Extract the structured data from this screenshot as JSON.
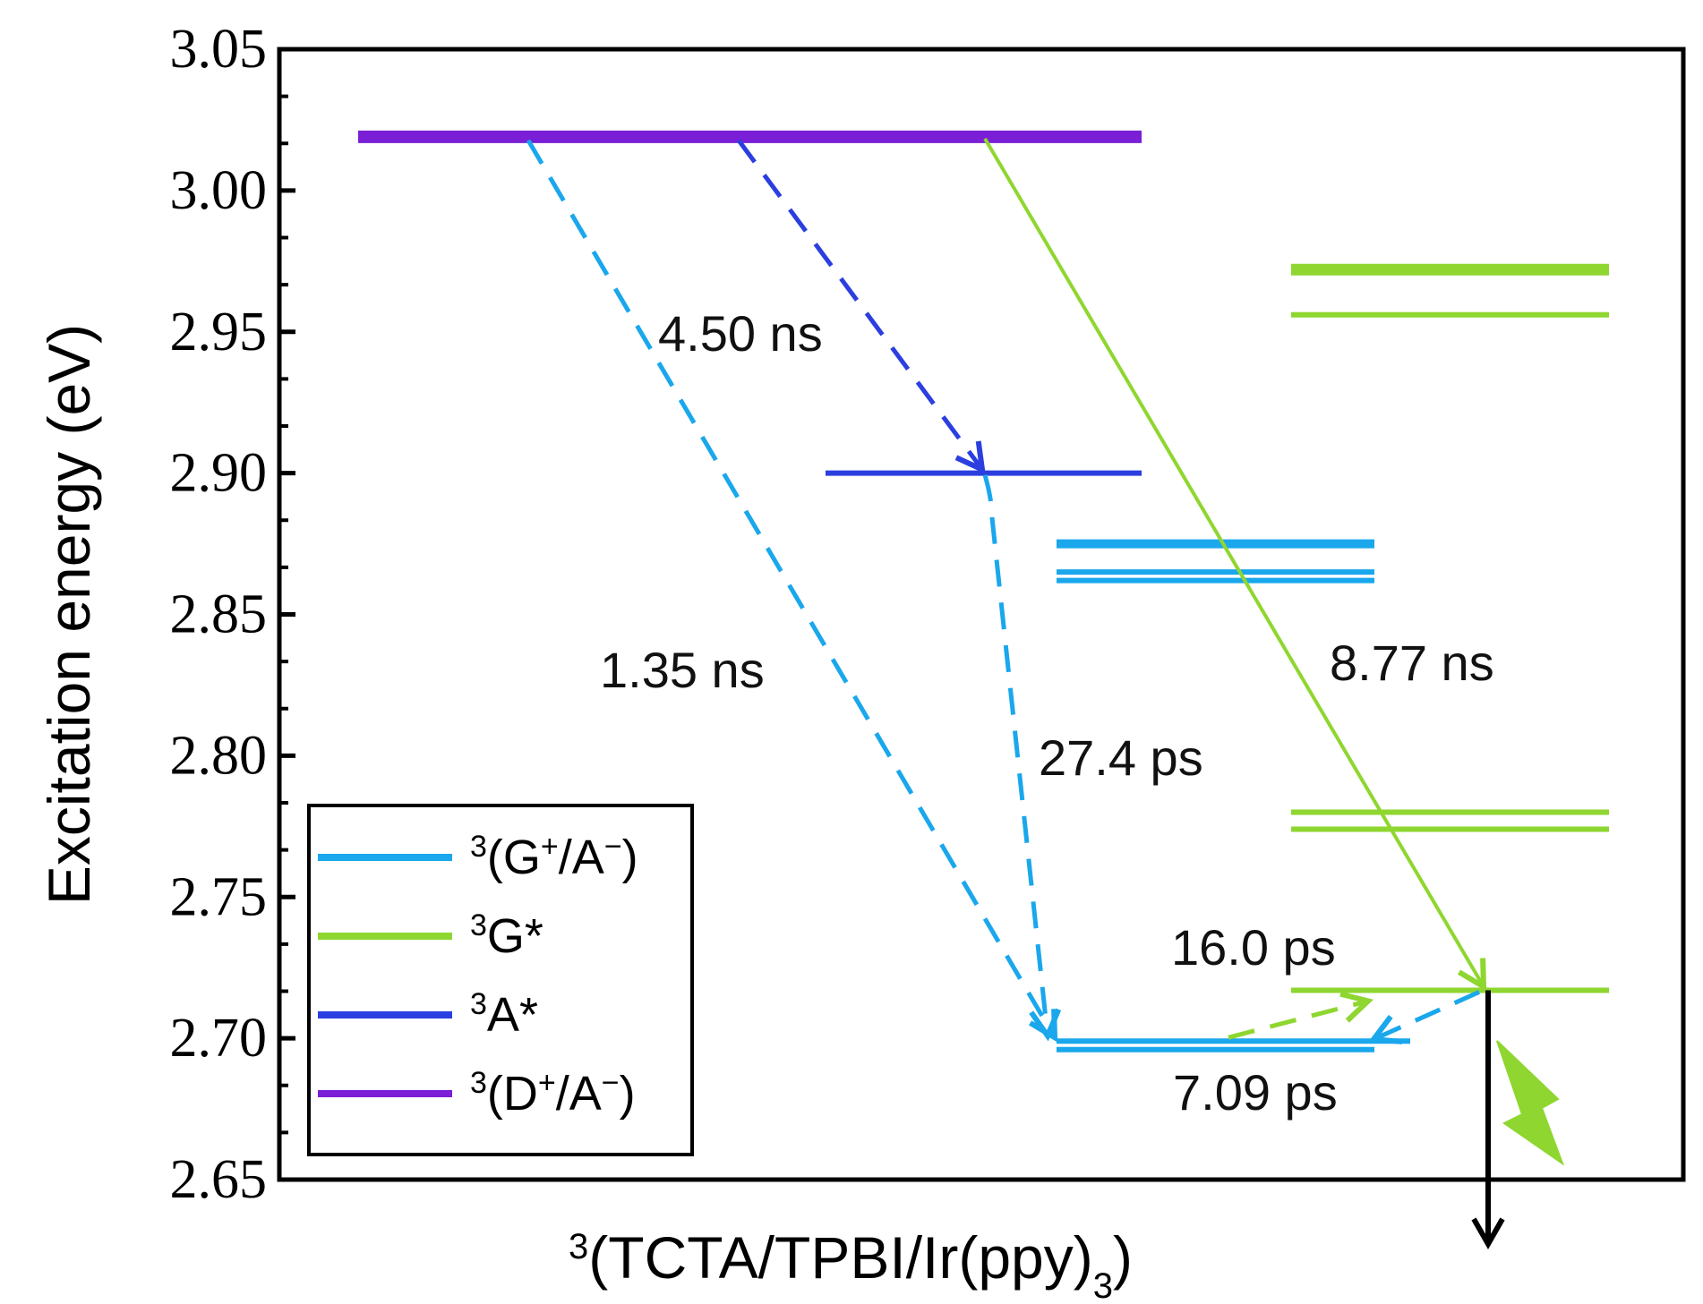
{
  "chart_data": {
    "type": "energy-level-diagram",
    "title": "",
    "ylabel": "Excitation energy (eV)",
    "xlabel": {
      "pre": "3",
      "main": "(TCTA/TPBI/Ir(ppy)",
      "sub": "3",
      "post": ")"
    },
    "ylim": [
      2.65,
      3.05
    ],
    "yticks": [
      "2.65",
      "2.70",
      "2.75",
      "2.80",
      "2.85",
      "2.90",
      "2.95",
      "3.00",
      "3.05"
    ],
    "colors": {
      "GA": "#1aa7ec",
      "G": "#8fd630",
      "A": "#2b3fe0",
      "DA": "#7a1fd6",
      "black": "#000000"
    },
    "levels": [
      {
        "state": "3(D+/A-)",
        "energy": 3.019,
        "column": "DA",
        "color_key": "DA"
      },
      {
        "state": "3A*",
        "energy": 2.9,
        "column": "A",
        "color_key": "A"
      },
      {
        "state": "3(G+/A-)",
        "energy": 2.875,
        "column": "GA",
        "color_key": "GA"
      },
      {
        "state": "3(G+/A-)",
        "energy": 2.865,
        "column": "GA",
        "color_key": "GA"
      },
      {
        "state": "3(G+/A-)",
        "energy": 2.862,
        "column": "GA",
        "color_key": "GA"
      },
      {
        "state": "3(G+/A-)",
        "energy": 2.699,
        "column": "GA",
        "color_key": "GA"
      },
      {
        "state": "3(G+/A-)",
        "energy": 2.696,
        "column": "GA",
        "color_key": "GA"
      },
      {
        "state": "3G*",
        "energy": 2.972,
        "column": "G",
        "color_key": "G"
      },
      {
        "state": "3G*",
        "energy": 2.956,
        "column": "G",
        "color_key": "G"
      },
      {
        "state": "3G*",
        "energy": 2.78,
        "column": "G",
        "color_key": "G"
      },
      {
        "state": "3G*",
        "energy": 2.774,
        "column": "G",
        "color_key": "G"
      },
      {
        "state": "3G*",
        "energy": 2.717,
        "column": "G",
        "color_key": "G"
      }
    ],
    "transitions": [
      {
        "from": 3.019,
        "to": 2.699,
        "time": "1.35 ns",
        "style": "dashed",
        "color_key": "GA"
      },
      {
        "from": 3.019,
        "to": 2.9,
        "time": "4.50 ns",
        "style": "dashed",
        "color_key": "A"
      },
      {
        "from": 2.9,
        "to": 2.699,
        "time": "27.4 ps",
        "style": "dashed",
        "color_key": "GA"
      },
      {
        "from": 3.019,
        "to": 2.717,
        "time": "8.77 ns",
        "style": "solid",
        "color_key": "G"
      },
      {
        "from": 2.699,
        "to": 2.717,
        "time": "16.0 ps",
        "style": "dashed",
        "color_key": "G"
      },
      {
        "from": 2.717,
        "to": 2.699,
        "time": "7.09 ps",
        "style": "dashed",
        "color_key": "GA"
      }
    ],
    "emission": {
      "from": 2.717,
      "to": "below axis",
      "color_key": "black"
    },
    "legend": {
      "position": "bottom-left",
      "entries": [
        {
          "pre": "3",
          "base": "(G",
          "sup": "+",
          "base2": "/A",
          "sup2": "−",
          "post": ")",
          "color_key": "GA"
        },
        {
          "pre": "3",
          "base": "G*",
          "sup": "",
          "base2": "",
          "sup2": "",
          "post": "",
          "color_key": "G"
        },
        {
          "pre": "3",
          "base": "A*",
          "sup": "",
          "base2": "",
          "sup2": "",
          "post": "",
          "color_key": "A"
        },
        {
          "pre": "3",
          "base": "(D",
          "sup": "+",
          "base2": "/A",
          "sup2": "−",
          "post": ")",
          "color_key": "DA"
        }
      ]
    }
  }
}
